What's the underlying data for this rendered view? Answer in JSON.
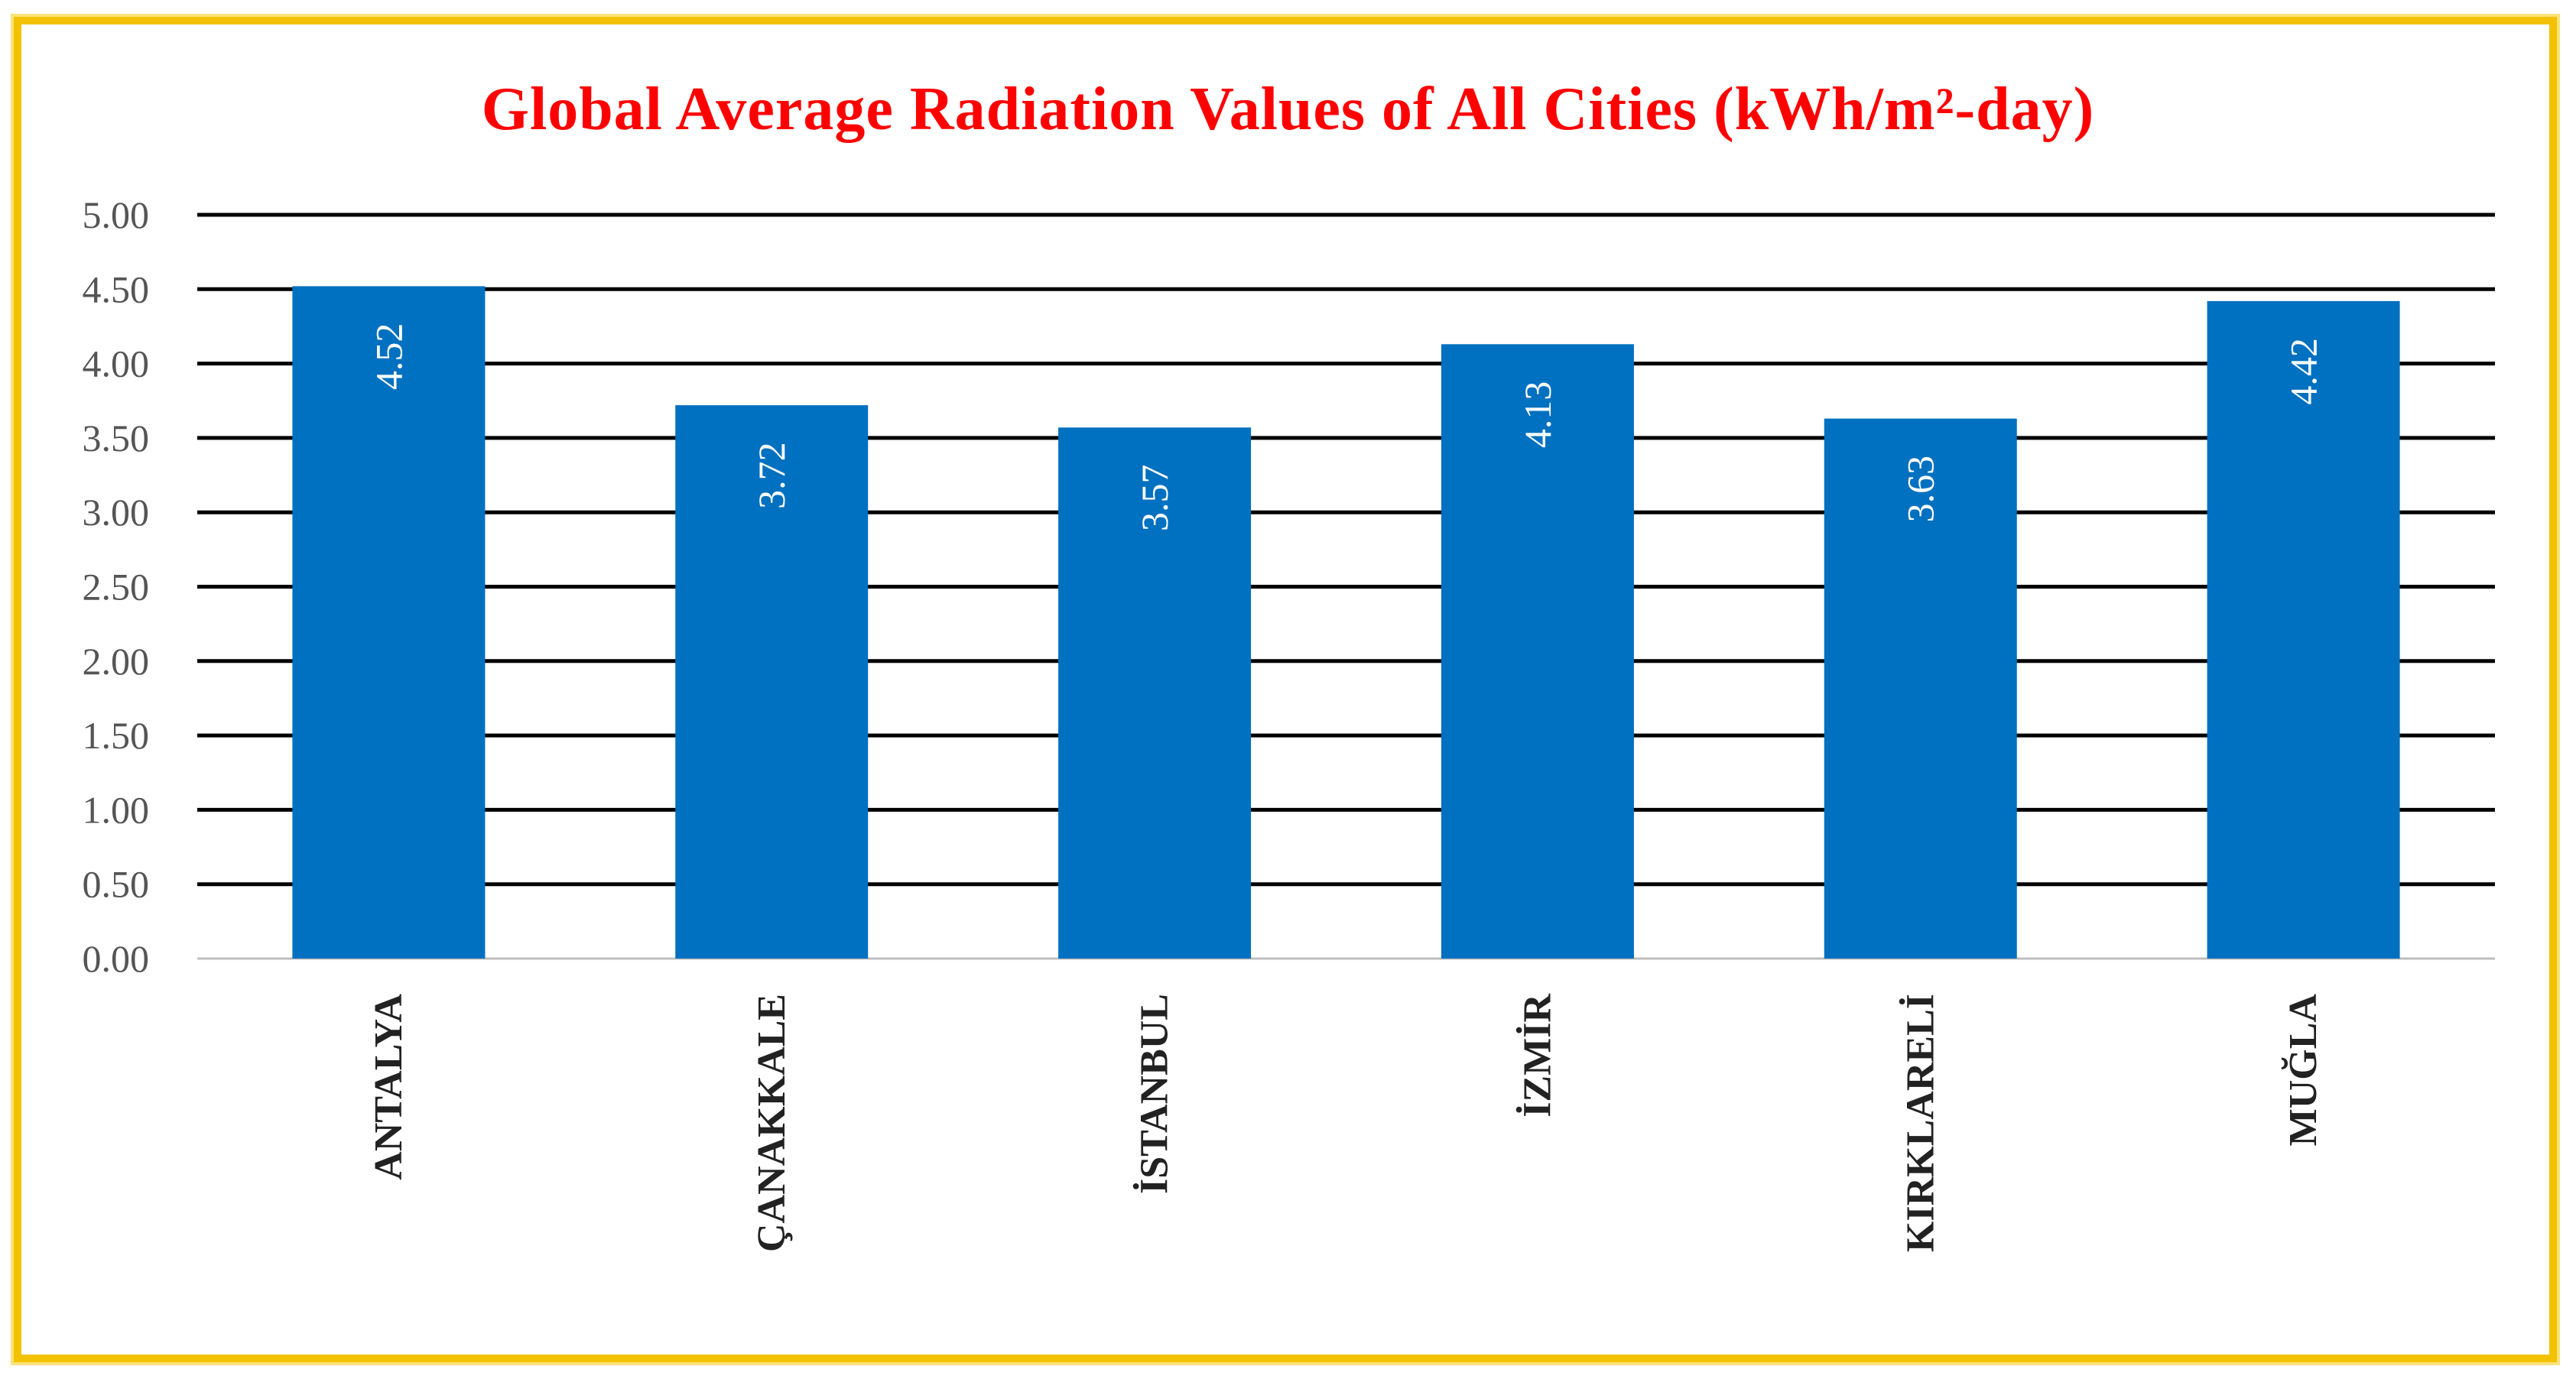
{
  "chart_data": {
    "type": "bar",
    "title": "Global Average Radiation Values of All Cities (kWh/m²-day)",
    "categories": [
      "ANTALYA",
      "ÇANAKKALE",
      "İSTANBUL",
      "İZMİR",
      "KIRKLARELİ",
      "MUĞLA"
    ],
    "values": [
      4.52,
      3.72,
      3.57,
      4.13,
      3.63,
      4.42
    ],
    "data_labels": [
      "4.52",
      "3.72",
      "3.57",
      "4.13",
      "3.63",
      "4.42"
    ],
    "ylim": [
      0,
      5
    ],
    "yticks": [
      "0.00",
      "0.50",
      "1.00",
      "1.50",
      "2.00",
      "2.50",
      "3.00",
      "3.50",
      "4.00",
      "4.50",
      "5.00"
    ],
    "xlabel": "",
    "ylabel": "",
    "grid": true,
    "bar_color": "#0070c0",
    "title_color": "#ff0000",
    "frame_color": "#f2c200"
  }
}
